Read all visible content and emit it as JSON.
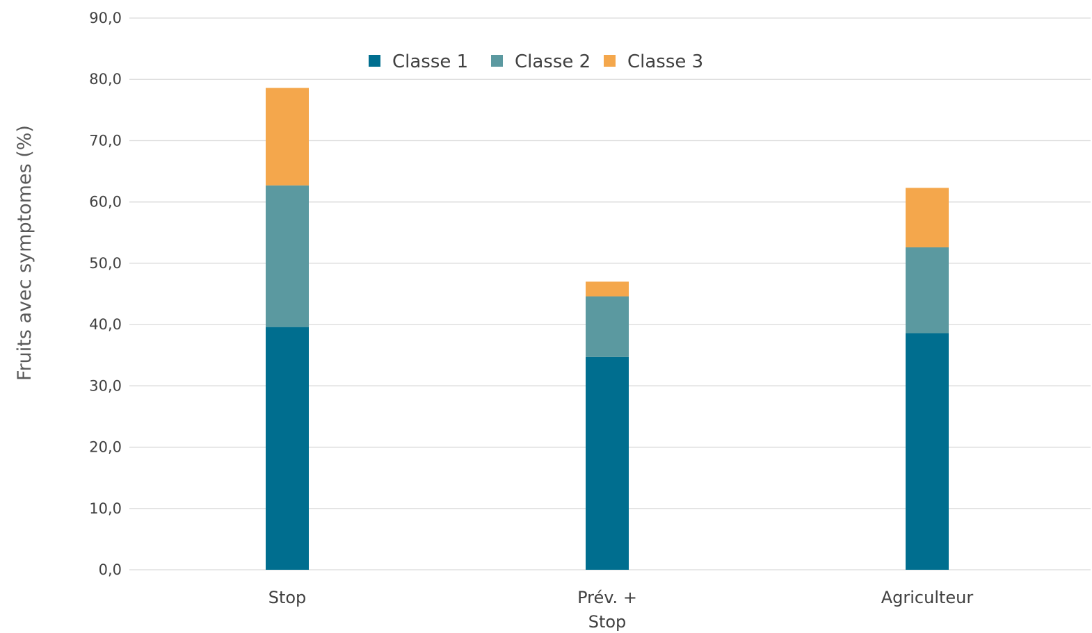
{
  "chart_data": {
    "type": "bar",
    "stacked": true,
    "categories": [
      "Stop",
      "Prév. +\nStop",
      "Agriculteur"
    ],
    "series": [
      {
        "name": "Classe 1",
        "color": "#006e8f",
        "values": [
          39.6,
          34.7,
          38.6
        ]
      },
      {
        "name": "Classe 2",
        "color": "#5b99a0",
        "values": [
          23.1,
          9.9,
          14.0
        ]
      },
      {
        "name": "Classe 3",
        "color": "#f4a74c",
        "values": [
          15.9,
          2.4,
          9.7
        ]
      }
    ],
    "ylabel": "Fruits avec  symptomes (%)",
    "xlabel": "",
    "ylim": [
      0,
      90
    ],
    "yticks": [
      0,
      10,
      20,
      30,
      40,
      50,
      60,
      70,
      80,
      90
    ],
    "ytick_labels": [
      "0,0",
      "10,0",
      "20,0",
      "30,0",
      "40,0",
      "50,0",
      "60,0",
      "70,0",
      "80,0",
      "90,0"
    ],
    "grid": true,
    "legend_position": "top-center",
    "gridline_color": "#d9d9d9"
  }
}
